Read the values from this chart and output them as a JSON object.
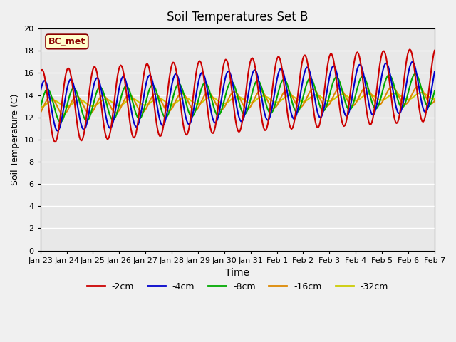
{
  "title": "Soil Temperatures Set B",
  "xlabel": "Time",
  "ylabel": "Soil Temperature (C)",
  "annotation": "BC_met",
  "ylim": [
    0,
    20
  ],
  "yticks": [
    0,
    2,
    4,
    6,
    8,
    10,
    12,
    14,
    16,
    18,
    20
  ],
  "x_labels": [
    "Jan 23",
    "Jan 24",
    "Jan 25",
    "Jan 26",
    "Jan 27",
    "Jan 28",
    "Jan 29",
    "Jan 30",
    "Jan 31",
    "Feb 1",
    "Feb 2",
    "Feb 3",
    "Feb 4",
    "Feb 5",
    "Feb 6",
    "Feb 7"
  ],
  "series_keys": [
    "-2cm",
    "-4cm",
    "-8cm",
    "-16cm",
    "-32cm"
  ],
  "series_colors": [
    "#cc0000",
    "#0000cc",
    "#00aa00",
    "#dd8800",
    "#cccc00"
  ],
  "series_lw": [
    1.5,
    1.5,
    1.5,
    1.5,
    1.5
  ],
  "bg_color": "#e8e8e8",
  "grid_color": "#ffffff",
  "mean_base": 13.0,
  "amplitudes": [
    3.3,
    2.3,
    1.5,
    0.8,
    0.3
  ],
  "phase_shifts": [
    1.2,
    0.6,
    -0.1,
    -0.8,
    -1.5
  ],
  "mean_offsets": [
    0.0,
    0.0,
    0.0,
    0.0,
    0.2
  ],
  "trends": [
    0.13,
    0.12,
    0.1,
    0.07,
    0.05
  ]
}
